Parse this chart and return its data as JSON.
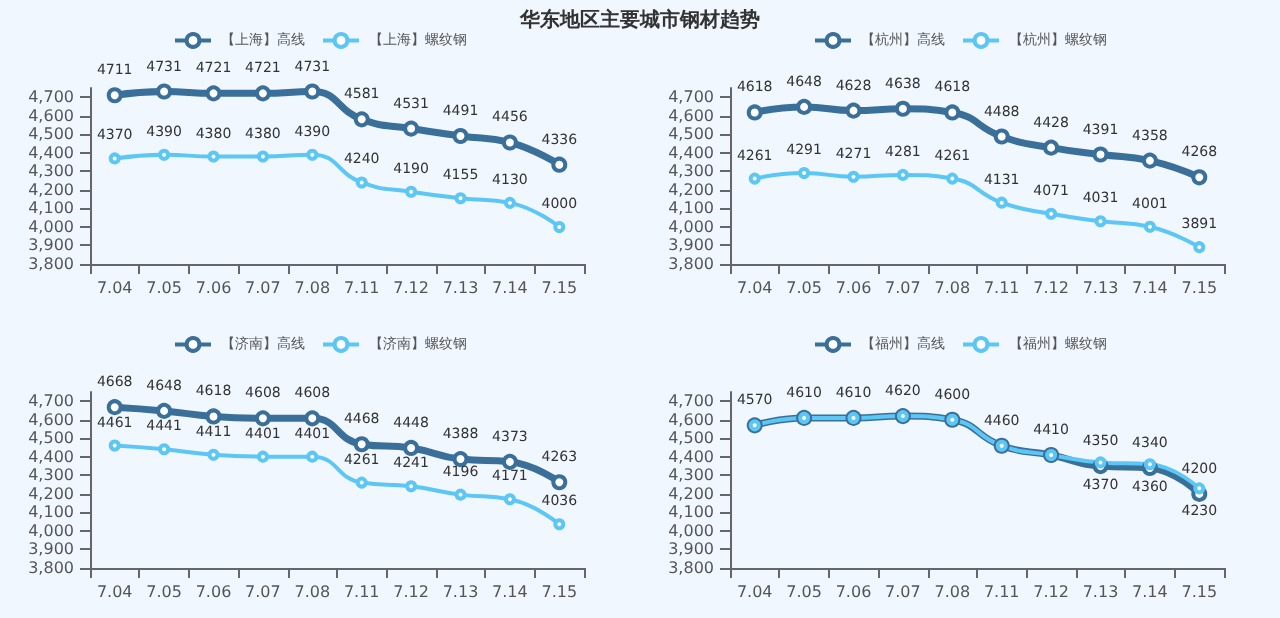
{
  "chart_data": [
    {
      "type": "line",
      "title": "华东地区主要城市钢材趋势",
      "categories": [
        "7.04",
        "7.05",
        "7.06",
        "7.07",
        "7.08",
        "7.11",
        "7.12",
        "7.13",
        "7.14",
        "7.15"
      ],
      "ylim": [
        3800,
        4750
      ],
      "yticks": [
        {
          "value": 3800,
          "label": "3,800"
        },
        {
          "value": 3900,
          "label": "3,900"
        },
        {
          "value": 4000,
          "label": "4,000"
        },
        {
          "value": 4100,
          "label": "4,100"
        },
        {
          "value": 4200,
          "label": "4,200"
        },
        {
          "value": 4300,
          "label": "4,300"
        },
        {
          "value": 4400,
          "label": "4,400"
        },
        {
          "value": 4500,
          "label": "4,500"
        },
        {
          "value": 4600,
          "label": "4,600"
        },
        {
          "value": 4700,
          "label": "4,700"
        }
      ],
      "grid": false,
      "legend": "top",
      "marker": "circle",
      "data_labels": true,
      "series": [
        {
          "name": "【上海】高线",
          "color": "#3a6f9a",
          "values": [
            4711,
            4731,
            4721,
            4721,
            4731,
            4581,
            4531,
            4491,
            4456,
            4336
          ]
        },
        {
          "name": "【上海】螺纹钢",
          "color": "#5cc6f5",
          "values": [
            4370,
            4390,
            4380,
            4380,
            4390,
            4240,
            4190,
            4155,
            4130,
            4000
          ]
        }
      ]
    },
    {
      "type": "line",
      "categories": [
        "7.04",
        "7.05",
        "7.06",
        "7.07",
        "7.08",
        "7.11",
        "7.12",
        "7.13",
        "7.14",
        "7.15"
      ],
      "ylim": [
        3800,
        4750
      ],
      "yticks": [
        {
          "value": 3800,
          "label": "3,800"
        },
        {
          "value": 3900,
          "label": "3,900"
        },
        {
          "value": 4000,
          "label": "4,000"
        },
        {
          "value": 4100,
          "label": "4,100"
        },
        {
          "value": 4200,
          "label": "4,200"
        },
        {
          "value": 4300,
          "label": "4,300"
        },
        {
          "value": 4400,
          "label": "4,400"
        },
        {
          "value": 4500,
          "label": "4,500"
        },
        {
          "value": 4600,
          "label": "4,600"
        },
        {
          "value": 4700,
          "label": "4,700"
        }
      ],
      "grid": false,
      "legend": "top",
      "marker": "circle",
      "data_labels": true,
      "series": [
        {
          "name": "【杭州】高线",
          "color": "#3a6f9a",
          "values": [
            4618,
            4648,
            4628,
            4638,
            4618,
            4488,
            4428,
            4391,
            4358,
            4268
          ]
        },
        {
          "name": "【杭州】螺纹钢",
          "color": "#5cc6f5",
          "values": [
            4261,
            4291,
            4271,
            4281,
            4261,
            4131,
            4071,
            4031,
            4001,
            3891
          ]
        }
      ]
    },
    {
      "type": "line",
      "categories": [
        "7.04",
        "7.05",
        "7.06",
        "7.07",
        "7.08",
        "7.11",
        "7.12",
        "7.13",
        "7.14",
        "7.15"
      ],
      "ylim": [
        3800,
        4750
      ],
      "yticks": [
        {
          "value": 3800,
          "label": "3,800"
        },
        {
          "value": 3900,
          "label": "3,900"
        },
        {
          "value": 4000,
          "label": "4,000"
        },
        {
          "value": 4100,
          "label": "4,100"
        },
        {
          "value": 4200,
          "label": "4,200"
        },
        {
          "value": 4300,
          "label": "4,300"
        },
        {
          "value": 4400,
          "label": "4,400"
        },
        {
          "value": 4500,
          "label": "4,500"
        },
        {
          "value": 4600,
          "label": "4,600"
        },
        {
          "value": 4700,
          "label": "4,700"
        }
      ],
      "grid": false,
      "legend": "top",
      "marker": "circle",
      "data_labels": true,
      "series": [
        {
          "name": "【济南】高线",
          "color": "#3a6f9a",
          "values": [
            4668,
            4648,
            4618,
            4608,
            4608,
            4468,
            4448,
            4388,
            4373,
            4263
          ]
        },
        {
          "name": "【济南】螺纹钢",
          "color": "#5cc6f5",
          "values": [
            4461,
            4441,
            4411,
            4401,
            4401,
            4261,
            4241,
            4196,
            4171,
            4036
          ]
        }
      ]
    },
    {
      "type": "line",
      "categories": [
        "7.04",
        "7.05",
        "7.06",
        "7.07",
        "7.08",
        "7.11",
        "7.12",
        "7.13",
        "7.14",
        "7.15"
      ],
      "ylim": [
        3800,
        4750
      ],
      "yticks": [
        {
          "value": 3800,
          "label": "3,800"
        },
        {
          "value": 3900,
          "label": "3,900"
        },
        {
          "value": 4000,
          "label": "4,000"
        },
        {
          "value": 4100,
          "label": "4,100"
        },
        {
          "value": 4200,
          "label": "4,200"
        },
        {
          "value": 4300,
          "label": "4,300"
        },
        {
          "value": 4400,
          "label": "4,400"
        },
        {
          "value": 4500,
          "label": "4,500"
        },
        {
          "value": 4600,
          "label": "4,600"
        },
        {
          "value": 4700,
          "label": "4,700"
        }
      ],
      "grid": false,
      "legend": "top",
      "marker": "circle",
      "data_labels": true,
      "series": [
        {
          "name": "【福州】高线",
          "color": "#3a6f9a",
          "values": [
            4570,
            4610,
            4610,
            4620,
            4600,
            4460,
            4410,
            4350,
            4340,
            4200
          ]
        },
        {
          "name": "【福州】螺纹钢",
          "color": "#5cc6f5",
          "values": [
            4570,
            4610,
            4610,
            4620,
            4600,
            4460,
            4410,
            4370,
            4360,
            4230
          ],
          "value_labels": [
            null,
            null,
            null,
            null,
            null,
            null,
            null,
            "4370",
            "4360",
            "4230"
          ]
        }
      ]
    }
  ]
}
